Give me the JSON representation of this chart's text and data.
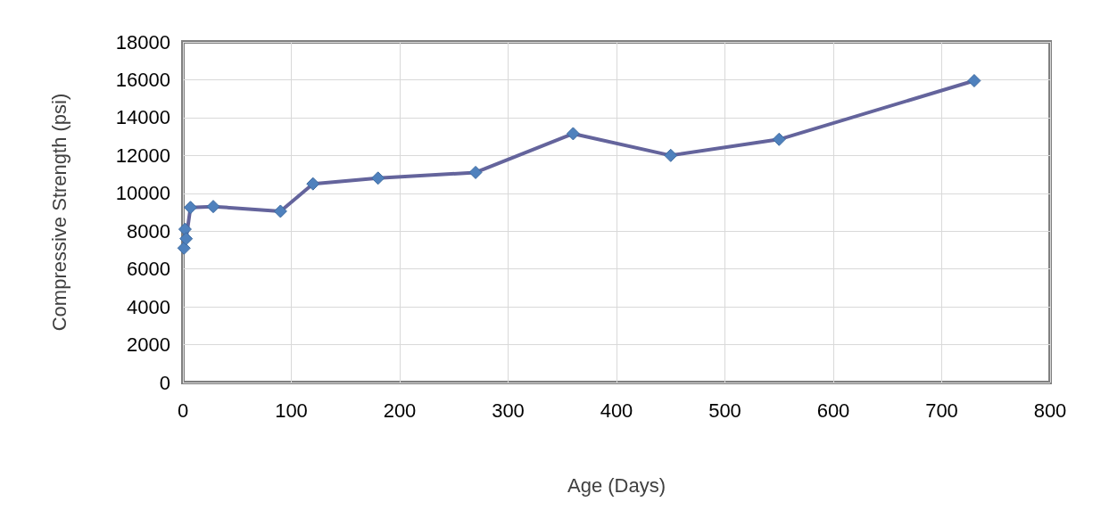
{
  "chart_data": {
    "type": "line",
    "xlabel": "Age (Days)",
    "ylabel": "Compressive Strength (psi)",
    "x": [
      1,
      2,
      3,
      7,
      28,
      90,
      120,
      180,
      270,
      360,
      450,
      550,
      730
    ],
    "series": [
      {
        "color": "#4f81bd",
        "values": [
          7100,
          8100,
          7600,
          9250,
          9300,
          9050,
          10500,
          10800,
          11100,
          13150,
          12000,
          12850,
          15950
        ]
      }
    ],
    "xlim": [
      0,
      800
    ],
    "xticks": [
      0,
      100,
      200,
      300,
      400,
      500,
      600,
      700,
      800
    ],
    "ylim": [
      0,
      18000
    ],
    "yticks": [
      0,
      2000,
      4000,
      6000,
      8000,
      10000,
      12000,
      14000,
      16000,
      18000
    ],
    "grid": true,
    "marker": "diamond",
    "line_style": "solid"
  }
}
